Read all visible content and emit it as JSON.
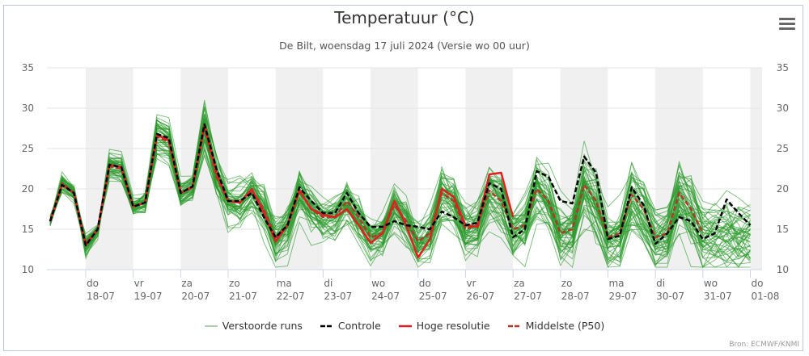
{
  "header": {
    "title": "Temperatuur (°C)",
    "subtitle": "De Bilt, woensdag 17 juli 2024 (Versie wo 00 uur)",
    "menu_icon": "hamburger-menu-icon"
  },
  "credits": "Bron: ECMWF/KNMI",
  "colors": {
    "members": "#2a9a2a",
    "control": "#000000",
    "hres": "#e02020",
    "median": "#b03a2a",
    "band": "#f0f0f0",
    "grid": "#e6e6e6"
  },
  "chart_data": {
    "type": "line",
    "title": "Temperatuur (°C)",
    "subtitle": "De Bilt, woensdag 17 juli 2024 (Versie wo 00 uur)",
    "xlabel": "",
    "ylabel": "",
    "ylim": [
      10,
      35
    ],
    "yticks": [
      "10",
      "15",
      "20",
      "25",
      "30",
      "35"
    ],
    "grid": true,
    "legend_position": "bottom-center",
    "x_start_hours_before_first_tick": 18,
    "x_step_hours": 6,
    "day_ticks": [
      {
        "day": "do",
        "date": "18-07"
      },
      {
        "day": "vr",
        "date": "19-07"
      },
      {
        "day": "za",
        "date": "20-07"
      },
      {
        "day": "zo",
        "date": "21-07"
      },
      {
        "day": "ma",
        "date": "22-07"
      },
      {
        "day": "di",
        "date": "23-07"
      },
      {
        "day": "wo",
        "date": "24-07"
      },
      {
        "day": "do",
        "date": "25-07"
      },
      {
        "day": "vr",
        "date": "26-07"
      },
      {
        "day": "za",
        "date": "27-07"
      },
      {
        "day": "zo",
        "date": "28-07"
      },
      {
        "day": "ma",
        "date": "29-07"
      },
      {
        "day": "di",
        "date": "30-07"
      },
      {
        "day": "wo",
        "date": "31-07"
      },
      {
        "day": "do",
        "date": "01-08"
      }
    ],
    "legend": [
      "Verstoorde runs",
      "Controle",
      "Hoge resolutie",
      "Middelste (P50)"
    ],
    "series": [
      {
        "name": "Controle",
        "values": [
          16,
          20.5,
          19.5,
          13,
          15,
          23,
          22.7,
          17.8,
          18.3,
          26.8,
          26.3,
          19.5,
          20.3,
          28,
          22.5,
          18.5,
          18.5,
          19.5,
          16.5,
          14,
          15.5,
          20.2,
          18.5,
          17,
          17,
          19.5,
          17,
          15.3,
          15.3,
          16,
          15.5,
          15.3,
          15,
          17.2,
          16.5,
          15.5,
          15.8,
          20.7,
          20,
          14,
          15,
          22.2,
          21.5,
          18.5,
          18.2,
          24,
          22,
          13.8,
          14.2,
          20.2,
          18,
          13.2,
          14.5,
          16.5,
          16,
          13.8,
          14.5,
          18.7,
          17,
          15.5
        ]
      },
      {
        "name": "Hoge resolutie",
        "values": [
          16,
          20.5,
          19.5,
          13,
          15,
          23,
          22.7,
          17.8,
          18.3,
          26.7,
          26,
          19.5,
          20.2,
          28,
          22,
          18.5,
          18.3,
          20,
          17,
          13.5,
          15.5,
          19.8,
          17.5,
          16.8,
          16.5,
          17.5,
          15.5,
          13.3,
          14.5,
          18.5,
          15.5,
          11.5,
          13.8,
          20,
          19,
          15.5,
          15.3,
          21.8,
          22,
          16.5
        ]
      },
      {
        "name": "Middelste (P50)",
        "values": [
          16,
          20.7,
          19.5,
          13.2,
          15,
          22.8,
          22.5,
          17.8,
          18.3,
          26.5,
          25.8,
          19.5,
          20.3,
          27.5,
          21.5,
          18.5,
          18.3,
          19.8,
          17.5,
          14,
          15.5,
          19.8,
          17.5,
          16.5,
          16.5,
          18.5,
          16.5,
          14,
          14.5,
          18,
          16,
          13.5,
          14.5,
          19.5,
          18.5,
          15,
          15.5,
          19.8,
          18.5,
          15,
          15.5,
          20,
          18.5,
          14.5,
          15,
          20.5,
          18.5,
          14,
          14.5,
          19.3,
          17.5,
          14,
          14.5,
          19.5,
          17.5,
          14.5
        ]
      }
    ],
    "ensemble": {
      "name": "Verstoorde runs",
      "member_count": 50,
      "seed": 17072024,
      "spread_per_step": [
        0.3,
        0.5,
        0.5,
        0.6,
        0.6,
        0.7,
        0.7,
        0.8,
        0.8,
        0.8,
        0.9,
        1.0,
        1.0,
        1.3,
        1.5,
        1.5,
        1.6,
        1.8,
        1.8,
        1.7,
        1.7,
        1.8,
        1.8,
        1.7,
        1.7,
        1.9,
        1.8,
        1.7,
        1.7,
        2.0,
        1.9,
        1.8,
        1.8,
        2.1,
        2.0,
        1.8,
        1.9,
        2.3,
        2.3,
        2.0,
        2.0,
        2.4,
        2.4,
        2.1,
        2.2,
        2.5,
        2.5,
        2.1,
        2.2,
        2.6,
        2.6,
        2.2,
        2.3,
        2.7,
        2.7,
        2.3,
        2.4,
        2.8,
        2.8,
        2.9
      ]
    }
  }
}
